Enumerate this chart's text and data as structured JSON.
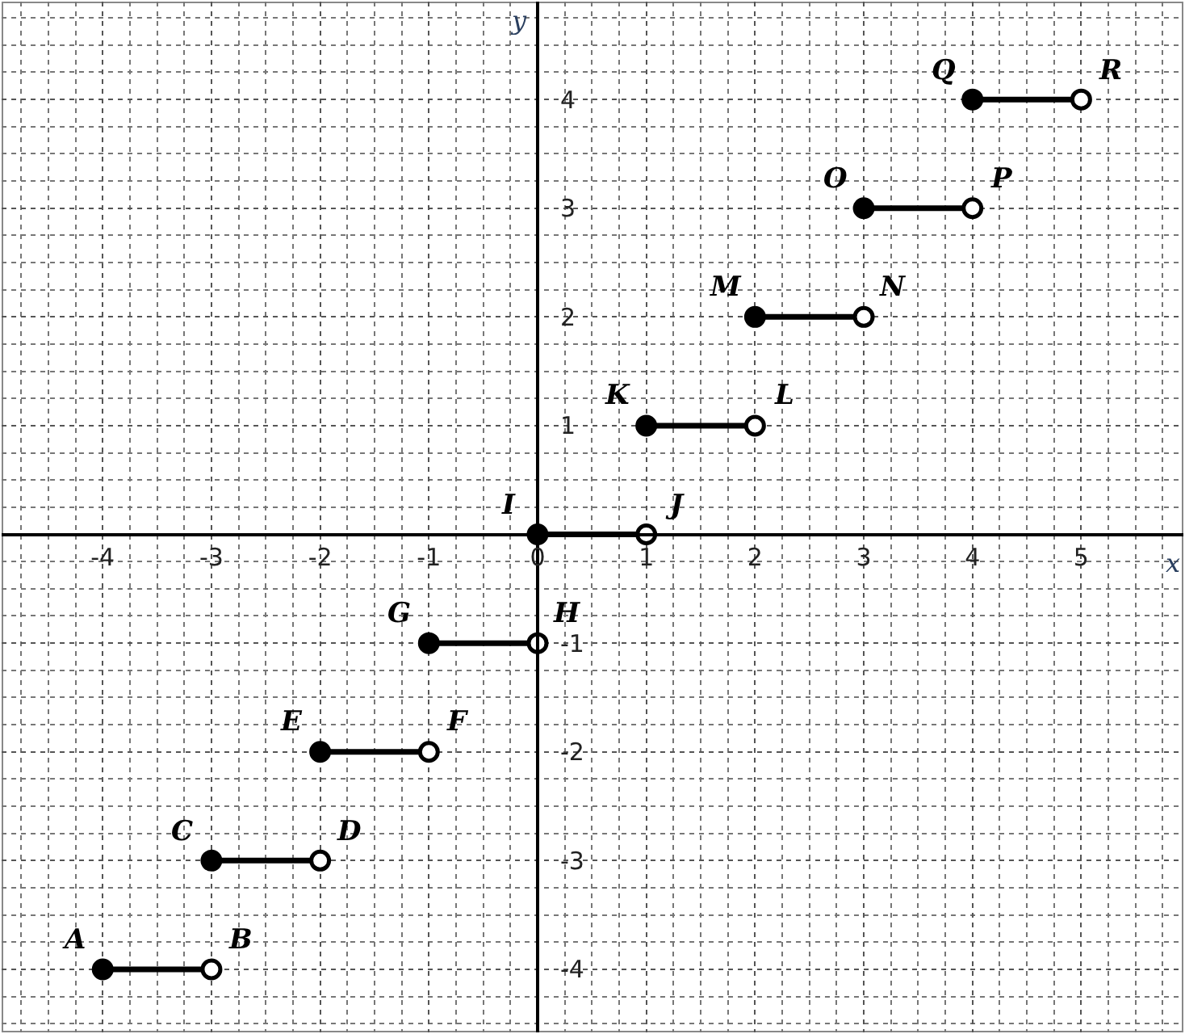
{
  "chart_data": {
    "type": "line",
    "xlabel": "x",
    "ylabel": "y",
    "xlim": [
      -4.93,
      5.94
    ],
    "ylim": [
      -4.58,
      4.9
    ],
    "xticks": [
      -4,
      -3,
      -2,
      -1,
      0,
      1,
      2,
      3,
      4,
      5
    ],
    "yticks": [
      -4,
      -3,
      -2,
      -1,
      1,
      2,
      3,
      4
    ],
    "grid": true,
    "marker": "circle",
    "line_style": "solid",
    "series": [
      {
        "color": "#000000",
        "colors": [
          "#000000",
          "#ffffff"
        ],
        "x": [
          -4,
          -3
        ],
        "values": [
          -4,
          -4
        ]
      },
      {
        "color": "#000000",
        "colors": [
          "#000000",
          "#ffffff"
        ],
        "x": [
          -3,
          -2
        ],
        "values": [
          -3,
          -3
        ]
      },
      {
        "color": "#000000",
        "colors": [
          "#000000",
          "#ffffff"
        ],
        "x": [
          -2,
          -1
        ],
        "values": [
          -2,
          -2
        ]
      },
      {
        "color": "#000000",
        "colors": [
          "#000000",
          "#ffffff"
        ],
        "x": [
          -1,
          0
        ],
        "values": [
          -1,
          -1
        ]
      },
      {
        "color": "#000000",
        "colors": [
          "#000000",
          "#ffffff"
        ],
        "x": [
          0,
          1
        ],
        "values": [
          0,
          0
        ]
      },
      {
        "color": "#000000",
        "colors": [
          "#000000",
          "#ffffff"
        ],
        "x": [
          1,
          2
        ],
        "values": [
          1,
          1
        ]
      },
      {
        "color": "#000000",
        "colors": [
          "#000000",
          "#ffffff"
        ],
        "x": [
          2,
          3
        ],
        "values": [
          2,
          2
        ]
      },
      {
        "color": "#000000",
        "colors": [
          "#000000",
          "#ffffff"
        ],
        "x": [
          3,
          4
        ],
        "values": [
          3,
          3
        ]
      },
      {
        "color": "#000000",
        "colors": [
          "#000000",
          "#ffffff"
        ],
        "x": [
          4,
          5
        ],
        "values": [
          4,
          4
        ]
      }
    ],
    "annotations": [
      {
        "text": "A",
        "x": -4,
        "y": -4
      },
      {
        "text": "B",
        "x": -3,
        "y": -4
      },
      {
        "text": "C",
        "x": -3,
        "y": -3
      },
      {
        "text": "D",
        "x": -2,
        "y": -3
      },
      {
        "text": "E",
        "x": -2,
        "y": -2
      },
      {
        "text": "F",
        "x": -1,
        "y": -2
      },
      {
        "text": "G",
        "x": -1,
        "y": -1
      },
      {
        "text": "H",
        "x": 0,
        "y": -1
      },
      {
        "text": "I",
        "x": 0,
        "y": 0
      },
      {
        "text": "J",
        "x": 1,
        "y": 0
      },
      {
        "text": "K",
        "x": 1,
        "y": 1
      },
      {
        "text": "L",
        "x": 2,
        "y": 1
      },
      {
        "text": "M",
        "x": 2,
        "y": 2
      },
      {
        "text": "N",
        "x": 3,
        "y": 2
      },
      {
        "text": "O",
        "x": 3,
        "y": 3
      },
      {
        "text": "P",
        "x": 4,
        "y": 3
      },
      {
        "text": "Q",
        "x": 4,
        "y": 4
      },
      {
        "text": "R",
        "x": 5,
        "y": 4
      }
    ]
  }
}
